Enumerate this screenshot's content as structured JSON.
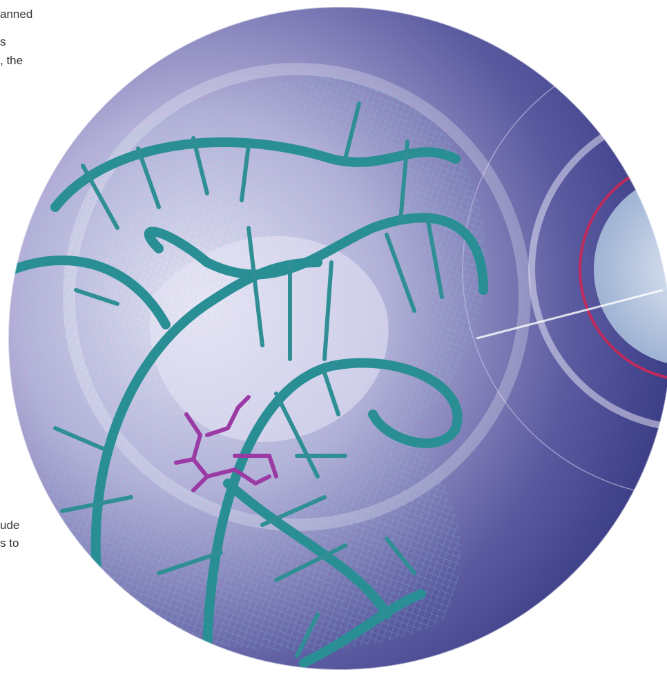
{
  "text_column": {
    "lines_top": [
      "anned",
      "s",
      ", the"
    ],
    "lines_bottom": [
      "ude",
      "s to"
    ]
  }
}
